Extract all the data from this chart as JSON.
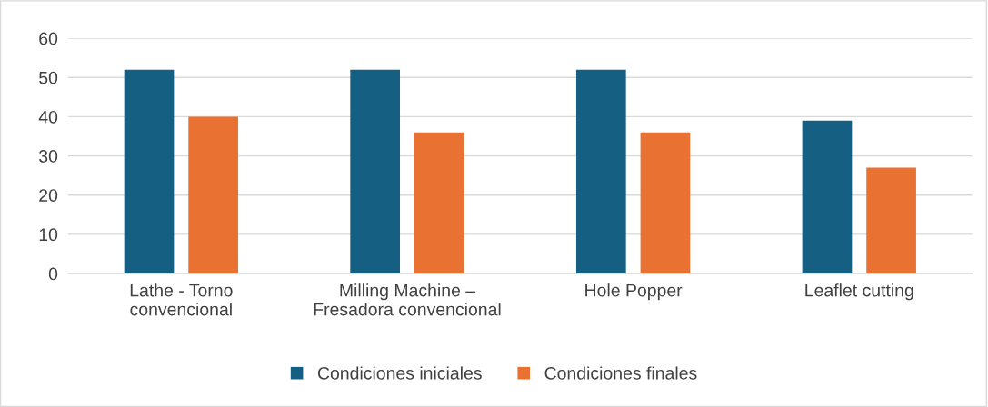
{
  "chart_data": {
    "type": "bar",
    "categories": [
      "Lathe - Torno\nconvencional",
      "Milling Machine –\nFresadora convencional",
      "Hole Popper",
      "Leaflet cutting"
    ],
    "series": [
      {
        "name": "Condiciones iniciales",
        "color": "#156082",
        "values": [
          52,
          52,
          52,
          39
        ]
      },
      {
        "name": "Condiciones finales",
        "color": "#e97132",
        "values": [
          40,
          36,
          36,
          27
        ]
      }
    ],
    "ylim": [
      0,
      60
    ],
    "yticks": [
      0,
      10,
      20,
      30,
      40,
      50,
      60
    ],
    "grid": "y",
    "legend": "bottom"
  }
}
